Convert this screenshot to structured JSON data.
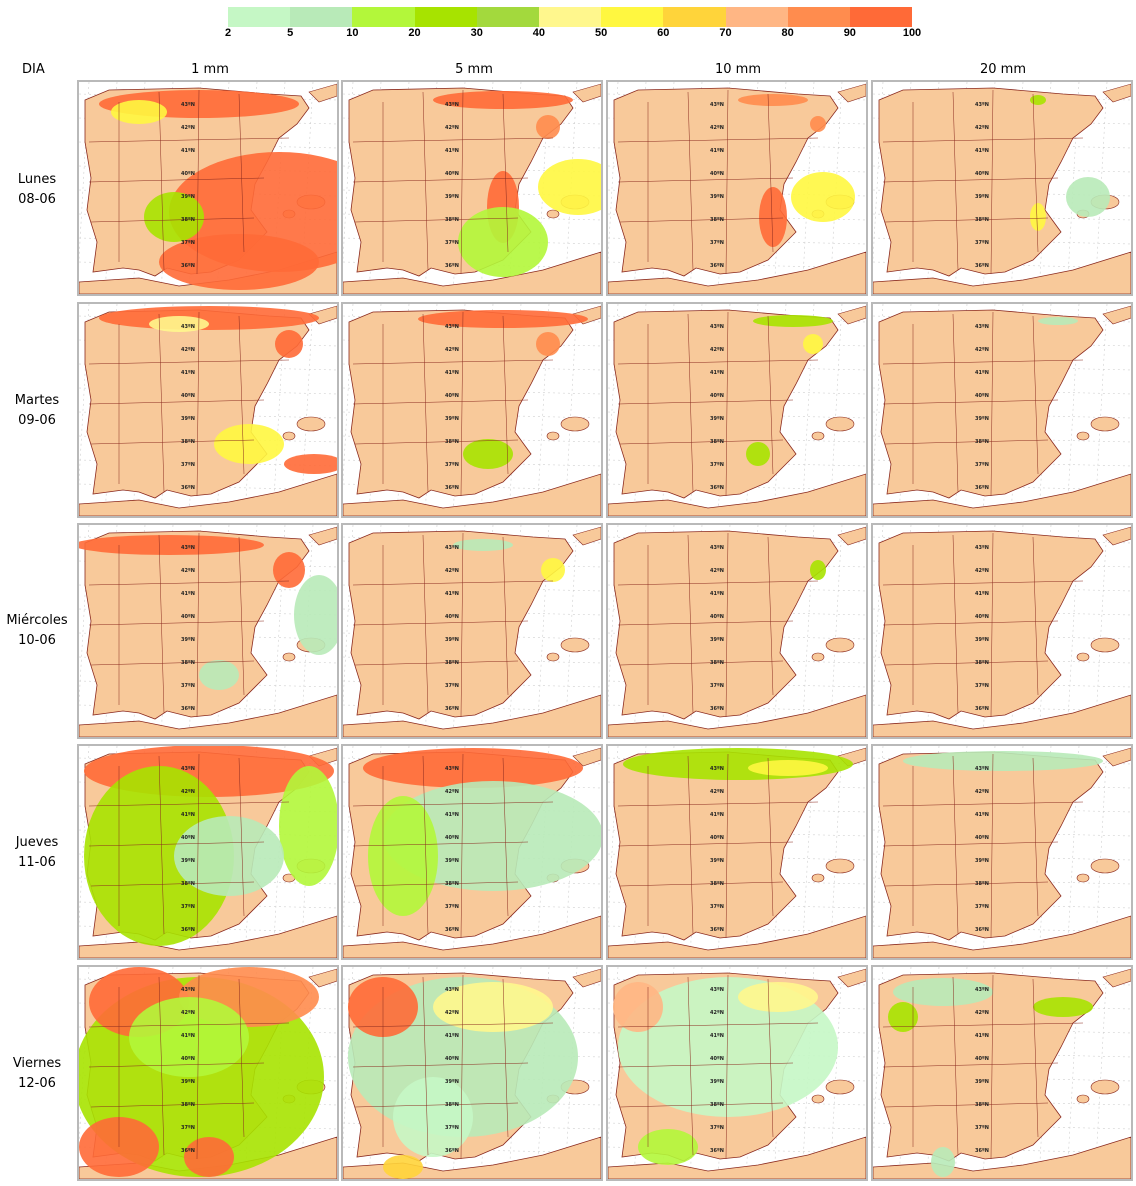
{
  "legend": {
    "ticks": [
      "2",
      "5",
      "10",
      "20",
      "30",
      "40",
      "50",
      "60",
      "70",
      "80",
      "90",
      "100"
    ],
    "colors": [
      "#c5f7c5",
      "#b8eab8",
      "#b3f73a",
      "#a7e300",
      "#a3d93d",
      "#fff78d",
      "#fff740",
      "#ffd43a",
      "#ffb684",
      "#ff8c4e",
      "#ff6a37"
    ]
  },
  "header": {
    "dia": "DIA",
    "columns": [
      "1 mm",
      "5 mm",
      "10 mm",
      "20 mm"
    ]
  },
  "rows": [
    {
      "day": "Lunes",
      "date": "08-06"
    },
    {
      "day": "Martes",
      "date": "09-06"
    },
    {
      "day": "Miércoles",
      "date": "10-06"
    },
    {
      "day": "Jueves",
      "date": "11-06"
    },
    {
      "day": "Viernes",
      "date": "12-06"
    }
  ],
  "map": {
    "land_color": "#f8c99a",
    "sea_color": "#ffffff",
    "border_color": "#8b2a1f",
    "grid_color": "#cfcfcf",
    "latitudes": [
      "43ºN",
      "42ºN",
      "41ºN",
      "40ºN",
      "39ºN",
      "38ºN",
      "37ºN",
      "36ºN"
    ]
  }
}
